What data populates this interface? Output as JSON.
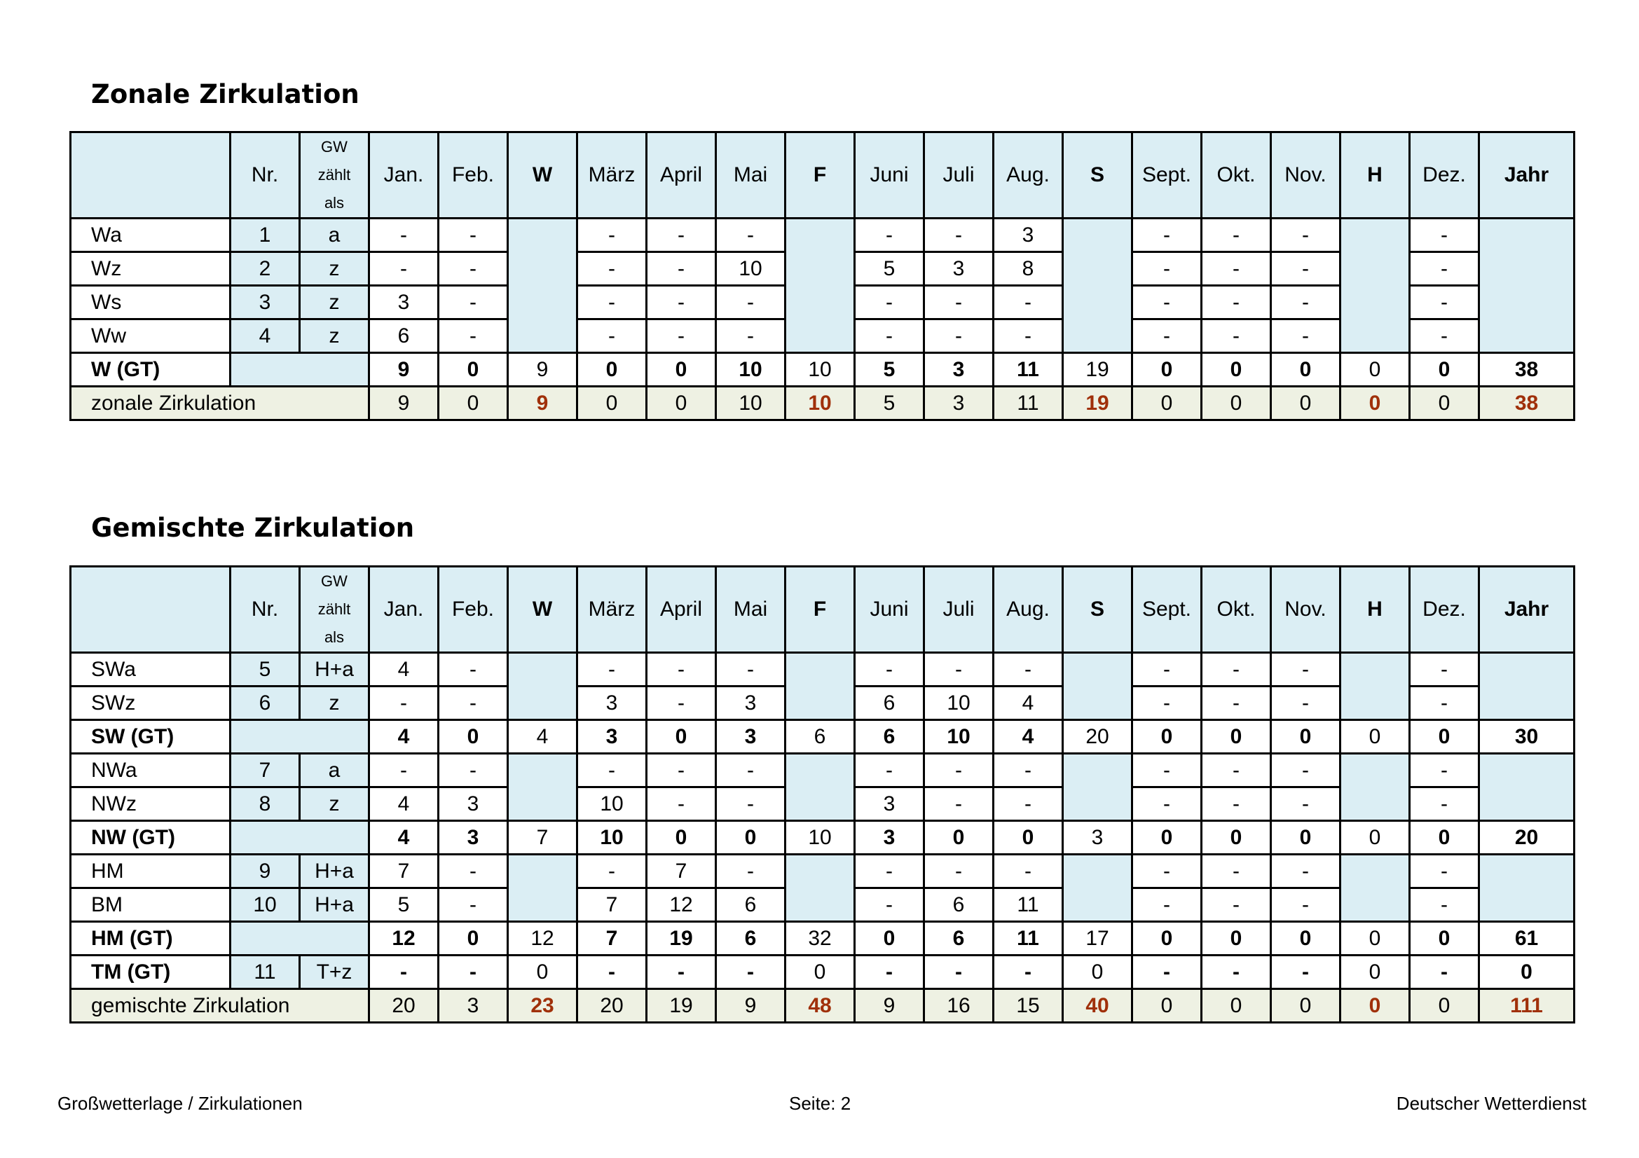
{
  "colors": {
    "header_fill": "#dbeef4",
    "sum_fill": "#eef1e3",
    "highlight": "#a0300a"
  },
  "headers": {
    "name": "",
    "nr": "Nr.",
    "gw": [
      "GW",
      "zählt",
      "als"
    ],
    "months": [
      "Jan.",
      "Feb.",
      "W",
      "März",
      "April",
      "Mai",
      "F",
      "Juni",
      "Juli",
      "Aug.",
      "S",
      "Sept.",
      "Okt.",
      "Nov.",
      "H",
      "Dez.",
      "Jahr"
    ]
  },
  "sections": [
    {
      "title": "Zonale Zirkulation",
      "rows": [
        {
          "name": "Wa",
          "nr": "1",
          "gw": "a",
          "vals": [
            "-",
            "-",
            "",
            "-",
            "-",
            "-",
            "",
            "-",
            "-",
            "3",
            "",
            "-",
            "-",
            "-",
            "",
            "-",
            ""
          ]
        },
        {
          "name": "Wz",
          "nr": "2",
          "gw": "z",
          "vals": [
            "-",
            "-",
            "",
            "-",
            "-",
            "10",
            "",
            "5",
            "3",
            "8",
            "",
            "-",
            "-",
            "-",
            "",
            "-",
            ""
          ]
        },
        {
          "name": "Ws",
          "nr": "3",
          "gw": "z",
          "vals": [
            "3",
            "-",
            "",
            "-",
            "-",
            "-",
            "",
            "-",
            "-",
            "-",
            "",
            "-",
            "-",
            "-",
            "",
            "-",
            ""
          ]
        },
        {
          "name": "Ww",
          "nr": "4",
          "gw": "z",
          "vals": [
            "6",
            "-",
            "",
            "-",
            "-",
            "-",
            "",
            "-",
            "-",
            "-",
            "",
            "-",
            "-",
            "-",
            "",
            "-",
            ""
          ]
        },
        {
          "name": "W (GT)",
          "type": "gt",
          "nr": "",
          "gw": "",
          "vals": [
            "9",
            "0",
            "9",
            "0",
            "0",
            "10",
            "10",
            "5",
            "3",
            "11",
            "19",
            "0",
            "0",
            "0",
            "0",
            "0",
            "38"
          ]
        },
        {
          "name": "zonale Zirkulation",
          "type": "sum",
          "vals": [
            "9",
            "0",
            "9",
            "0",
            "0",
            "10",
            "10",
            "5",
            "3",
            "11",
            "19",
            "0",
            "0",
            "0",
            "0",
            "0",
            "38"
          ]
        }
      ]
    },
    {
      "title": "Gemischte Zirkulation",
      "rows": [
        {
          "name": "SWa",
          "nr": "5",
          "gw": "H+a",
          "vals": [
            "4",
            "-",
            "",
            "-",
            "-",
            "-",
            "",
            "-",
            "-",
            "-",
            "",
            "-",
            "-",
            "-",
            "",
            "-",
            ""
          ]
        },
        {
          "name": "SWz",
          "nr": "6",
          "gw": "z",
          "vals": [
            "-",
            "-",
            "",
            "3",
            "-",
            "3",
            "",
            "6",
            "10",
            "4",
            "",
            "-",
            "-",
            "-",
            "",
            "-",
            ""
          ]
        },
        {
          "name": "SW (GT)",
          "type": "gt",
          "nr": "",
          "gw": "",
          "vals": [
            "4",
            "0",
            "4",
            "3",
            "0",
            "3",
            "6",
            "6",
            "10",
            "4",
            "20",
            "0",
            "0",
            "0",
            "0",
            "0",
            "30"
          ]
        },
        {
          "name": "NWa",
          "nr": "7",
          "gw": "a",
          "vals": [
            "-",
            "-",
            "",
            "-",
            "-",
            "-",
            "",
            "-",
            "-",
            "-",
            "",
            "-",
            "-",
            "-",
            "",
            "-",
            ""
          ]
        },
        {
          "name": "NWz",
          "nr": "8",
          "gw": "z",
          "vals": [
            "4",
            "3",
            "",
            "10",
            "-",
            "-",
            "",
            "3",
            "-",
            "-",
            "",
            "-",
            "-",
            "-",
            "",
            "-",
            ""
          ]
        },
        {
          "name": "NW (GT)",
          "type": "gt",
          "nr": "",
          "gw": "",
          "vals": [
            "4",
            "3",
            "7",
            "10",
            "0",
            "0",
            "10",
            "3",
            "0",
            "0",
            "3",
            "0",
            "0",
            "0",
            "0",
            "0",
            "20"
          ]
        },
        {
          "name": "HM",
          "nr": "9",
          "gw": "H+a",
          "vals": [
            "7",
            "-",
            "",
            "-",
            "7",
            "-",
            "",
            "-",
            "-",
            "-",
            "",
            "-",
            "-",
            "-",
            "",
            "-",
            ""
          ]
        },
        {
          "name": "BM",
          "nr": "10",
          "gw": "H+a",
          "vals": [
            "5",
            "-",
            "",
            "7",
            "12",
            "6",
            "",
            "-",
            "6",
            "11",
            "",
            "-",
            "-",
            "-",
            "",
            "-",
            ""
          ]
        },
        {
          "name": "HM (GT)",
          "type": "gt",
          "nr": "",
          "gw": "",
          "vals": [
            "12",
            "0",
            "12",
            "7",
            "19",
            "6",
            "32",
            "0",
            "6",
            "11",
            "17",
            "0",
            "0",
            "0",
            "0",
            "0",
            "61"
          ]
        },
        {
          "name": "TM (GT)",
          "type": "gt",
          "nr": "11",
          "gw": "T+z",
          "vals": [
            "-",
            "-",
            "0",
            "-",
            "-",
            "-",
            "0",
            "-",
            "-",
            "-",
            "0",
            "-",
            "-",
            "-",
            "0",
            "-",
            "0"
          ]
        },
        {
          "name": "gemischte Zirkulation",
          "type": "sum",
          "vals": [
            "20",
            "3",
            "23",
            "20",
            "19",
            "9",
            "48",
            "9",
            "16",
            "15",
            "40",
            "0",
            "0",
            "0",
            "0",
            "0",
            "111"
          ]
        }
      ]
    }
  ],
  "footer": {
    "left": "Großwetterlage / Zirkulationen",
    "center": "Seite: 2",
    "right": "Deutscher Wetterdienst"
  }
}
